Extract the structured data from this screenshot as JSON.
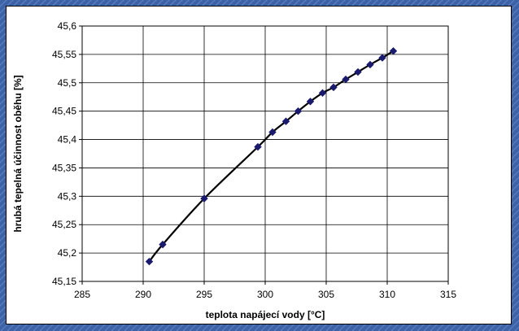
{
  "slide": {
    "background_color": "#3d62a6",
    "pattern_color": "#5a7fc0"
  },
  "chart_data": {
    "type": "line",
    "title": "",
    "xlabel": "teplota napájecí vody [°C]",
    "ylabel": "hrubá tepelná účinnost oběhu [%]",
    "xlim": [
      285,
      315
    ],
    "ylim": [
      45.15,
      45.6
    ],
    "xticks": [
      285,
      290,
      295,
      300,
      305,
      310,
      315
    ],
    "xtick_labels": [
      "285",
      "290",
      "295",
      "300",
      "305",
      "310",
      "315"
    ],
    "yticks": [
      45.15,
      45.2,
      45.25,
      45.3,
      45.35,
      45.4,
      45.45,
      45.5,
      45.55,
      45.6
    ],
    "ytick_labels": [
      "45,15",
      "45,2",
      "45,25",
      "45,3",
      "45,35",
      "45,4",
      "45,45",
      "45,5",
      "45,55",
      "45,6"
    ],
    "grid": true,
    "legend": "none",
    "series": [
      {
        "x": [
          290.5,
          291.6,
          295.0,
          299.4,
          300.6,
          301.7,
          302.7,
          303.7,
          304.7,
          305.6,
          306.6,
          307.6,
          308.6,
          309.6,
          310.5
        ],
        "y": [
          45.185,
          45.215,
          45.296,
          45.387,
          45.413,
          45.432,
          45.45,
          45.467,
          45.482,
          45.492,
          45.506,
          45.519,
          45.532,
          45.544,
          45.556
        ],
        "line_color": "#000000",
        "marker": "diamond",
        "marker_color": "#1a1a6e"
      }
    ]
  }
}
